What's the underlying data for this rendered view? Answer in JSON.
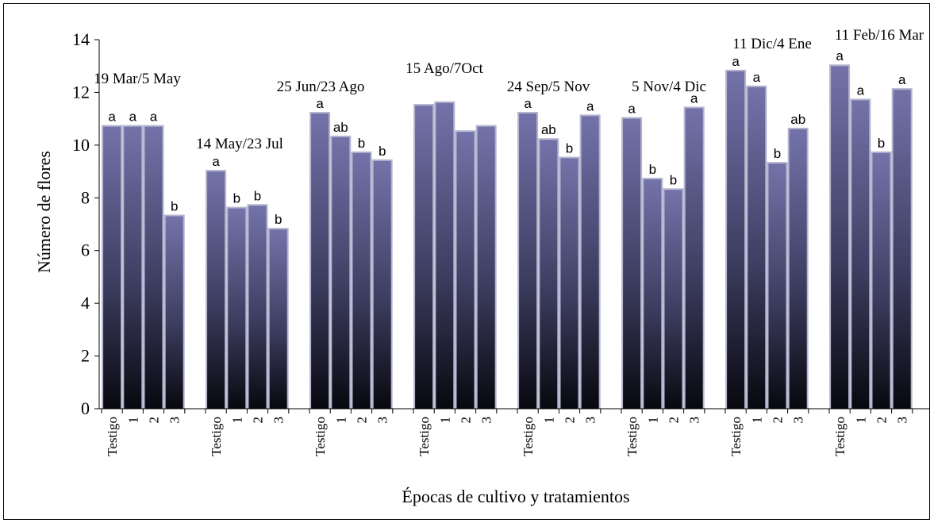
{
  "chart_data": {
    "type": "bar",
    "ylabel": "Número de flores",
    "xlabel": "Épocas de cultivo y tratamientos",
    "ylim": [
      0,
      14
    ],
    "yticks": [
      0,
      2,
      4,
      6,
      8,
      10,
      12,
      14
    ],
    "grid": false,
    "bar_color_top": "#7070a8",
    "bar_color_bottom": "#0a0a14",
    "bar_border_color": "#a8a8c8",
    "groups": [
      {
        "label": "19 Mar/5 May",
        "categories": [
          "Testigo",
          "1",
          "2",
          "3"
        ],
        "values": [
          10.7,
          10.7,
          10.7,
          7.3
        ],
        "letters": [
          "a",
          "a",
          "a",
          "b"
        ]
      },
      {
        "label": "14 May/23 Jul",
        "categories": [
          "Testigo",
          "1",
          "2",
          "3"
        ],
        "values": [
          9.0,
          7.6,
          7.7,
          6.8
        ],
        "letters": [
          "a",
          "b",
          "b",
          "b"
        ]
      },
      {
        "label": "25 Jun/23 Ago",
        "categories": [
          "Testigo",
          "1",
          "2",
          "3"
        ],
        "values": [
          11.2,
          10.3,
          9.7,
          9.4
        ],
        "letters": [
          "a",
          "ab",
          "b",
          "b"
        ]
      },
      {
        "label": "15 Ago/7Oct",
        "categories": [
          "Testigo",
          "1",
          "2",
          "3"
        ],
        "values": [
          11.5,
          11.6,
          10.5,
          10.7
        ],
        "letters": [
          "",
          "",
          "",
          ""
        ]
      },
      {
        "label": "24 Sep/5 Nov",
        "categories": [
          "Testigo",
          "1",
          "2",
          "3"
        ],
        "values": [
          11.2,
          10.2,
          9.5,
          11.1
        ],
        "letters": [
          "a",
          "ab",
          "b",
          "a"
        ]
      },
      {
        "label": "5 Nov/4 Dic",
        "categories": [
          "Testigo",
          "1",
          "2",
          "3"
        ],
        "values": [
          11.0,
          8.7,
          8.3,
          11.4
        ],
        "letters": [
          "a",
          "b",
          "b",
          "a"
        ]
      },
      {
        "label": "11 Dic/4 Ene",
        "categories": [
          "Testigo",
          "1",
          "2",
          "3"
        ],
        "values": [
          12.8,
          12.2,
          9.3,
          10.6
        ],
        "letters": [
          "a",
          "a",
          "b",
          "ab"
        ]
      },
      {
        "label": "11 Feb/16 Mar",
        "categories": [
          "Testigo",
          "1",
          "2",
          "3"
        ],
        "values": [
          13.0,
          11.7,
          9.7,
          12.1
        ],
        "letters": [
          "a",
          "a",
          "b",
          "a"
        ]
      }
    ]
  }
}
